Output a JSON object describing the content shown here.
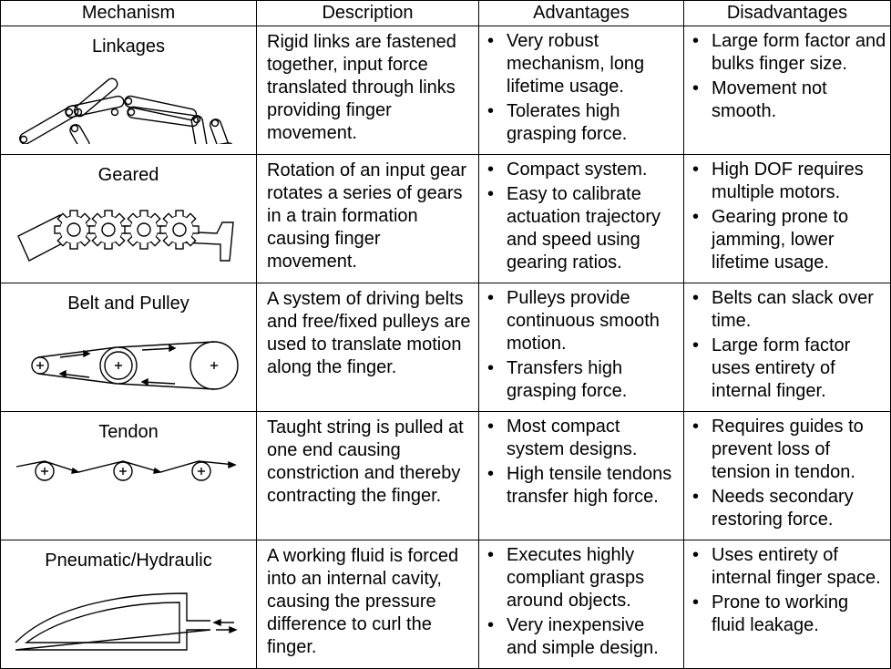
{
  "headers": [
    "Mechanism",
    "Description",
    "Advantages",
    "Disadvantages"
  ],
  "rows": [
    {
      "mechanism": "Linkages",
      "description": "Rigid links are fastened together, input force translated through links providing finger movement.",
      "advantages": [
        "Very robust mechanism, long lifetime usage.",
        "Tolerates high grasping force."
      ],
      "disadvantages": [
        "Large form factor and bulks finger size.",
        "Movement not smooth."
      ]
    },
    {
      "mechanism": "Geared",
      "description": "Rotation of an input gear rotates a series of gears in a train formation causing finger movement.",
      "advantages": [
        "Compact system.",
        "Easy to calibrate actuation trajectory and speed using gearing ratios."
      ],
      "disadvantages": [
        "High DOF requires multiple motors.",
        "Gearing prone to jamming, lower lifetime usage."
      ]
    },
    {
      "mechanism": "Belt and Pulley",
      "description": "A system of driving belts and free/fixed pulleys are used to translate motion along the finger.",
      "advantages": [
        "Pulleys provide continuous smooth motion.",
        "Transfers high grasping force."
      ],
      "disadvantages": [
        "Belts can slack over time.",
        "Large form factor uses entirety of internal finger."
      ]
    },
    {
      "mechanism": "Tendon",
      "description": "Taught string is pulled at one end causing constriction and thereby contracting the finger.",
      "advantages": [
        "Most compact system designs.",
        "High tensile tendons transfer high force."
      ],
      "disadvantages": [
        "Requires guides to prevent loss of tension in tendon.",
        "Needs secondary restoring force."
      ]
    },
    {
      "mechanism": "Pneumatic/Hydraulic",
      "description": "A working fluid is forced into an internal cavity, causing the pressure difference to curl the finger.",
      "advantages": [
        "Executes highly compliant grasps around objects.",
        "Very inexpensive and simple design."
      ],
      "disadvantages": [
        "Uses entirety of internal finger space.",
        "Prone to working fluid leakage."
      ]
    }
  ]
}
